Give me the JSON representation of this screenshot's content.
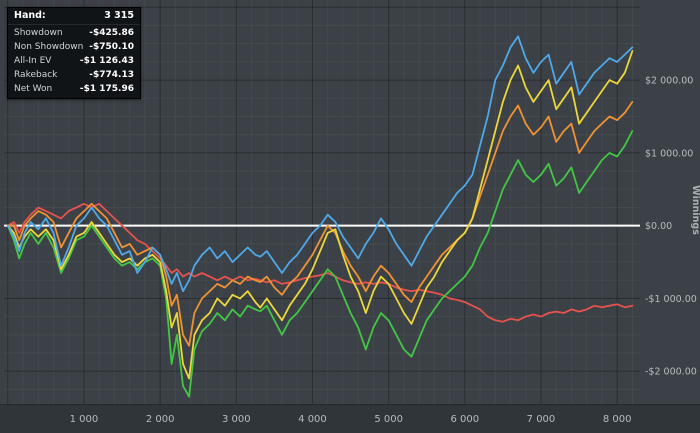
{
  "legend": {
    "rows": [
      {
        "label": "Hand:",
        "value": "3 315"
      },
      {
        "label": "Showdown",
        "value": "-$425.86"
      },
      {
        "label": "Non Showdown",
        "value": "-$750.10"
      },
      {
        "label": "All-In EV",
        "value": "-$1 126.43"
      },
      {
        "label": "Rakeback",
        "value": "-$774.13"
      },
      {
        "label": "Net Won",
        "value": "-$1 175.96"
      }
    ]
  },
  "chart_data": {
    "type": "line",
    "title": "",
    "xlabel": "",
    "ylabel": "Winnings",
    "xlim": [
      -50,
      8300
    ],
    "ylim": [
      -2450,
      3100
    ],
    "zero_line": 0,
    "colors": {
      "background": "#3b4146",
      "axis_strip": "#30353a",
      "zero_line": "#ffffff",
      "grid_minor": "rgba(255,255,255,0.045)",
      "grid_major": "rgba(0,0,0,0.28)",
      "tick_text": "#b6bbc0"
    },
    "grid": {
      "minor_x_step": 200,
      "minor_y_step": 250,
      "major_x_step": 1000,
      "major_y_step": 1000
    },
    "x_ticks": [
      {
        "v": 1000,
        "label": "1 000"
      },
      {
        "v": 2000,
        "label": "2 000"
      },
      {
        "v": 3000,
        "label": "3 000"
      },
      {
        "v": 4000,
        "label": "4 000"
      },
      {
        "v": 5000,
        "label": "5 000"
      },
      {
        "v": 6000,
        "label": "6 000"
      },
      {
        "v": 7000,
        "label": "7 000"
      },
      {
        "v": 8000,
        "label": "8 000"
      }
    ],
    "y_ticks": [
      {
        "v": 2000,
        "label": "$2 000.00"
      },
      {
        "v": 1000,
        "label": "$1 000.00"
      },
      {
        "v": 0,
        "label": "$0.00"
      },
      {
        "v": -1000,
        "label": "-$1 000.00"
      },
      {
        "v": -2000,
        "label": "-$2 000.00"
      }
    ],
    "x": [
      0,
      80,
      150,
      220,
      300,
      400,
      500,
      600,
      700,
      800,
      900,
      1000,
      1100,
      1200,
      1300,
      1400,
      1500,
      1600,
      1700,
      1800,
      1900,
      2000,
      2080,
      2150,
      2220,
      2300,
      2380,
      2450,
      2550,
      2650,
      2750,
      2850,
      2950,
      3050,
      3150,
      3250,
      3315,
      3400,
      3500,
      3600,
      3700,
      3800,
      3900,
      4000,
      4100,
      4200,
      4300,
      4400,
      4500,
      4600,
      4700,
      4800,
      4900,
      5000,
      5100,
      5200,
      5300,
      5400,
      5500,
      5600,
      5700,
      5800,
      5900,
      6000,
      6100,
      6200,
      6300,
      6400,
      6500,
      6600,
      6700,
      6800,
      6900,
      7000,
      7100,
      7200,
      7300,
      7400,
      7500,
      7600,
      7700,
      7800,
      7900,
      8000,
      8100,
      8200
    ],
    "series": [
      {
        "name": "Non Showdown",
        "color": "#e6534e",
        "values": [
          0,
          50,
          -100,
          50,
          150,
          250,
          200,
          150,
          100,
          200,
          250,
          300,
          250,
          300,
          200,
          100,
          0,
          -100,
          -200,
          -250,
          -350,
          -450,
          -550,
          -650,
          -600,
          -700,
          -650,
          -700,
          -650,
          -700,
          -750,
          -700,
          -750,
          -700,
          -750,
          -730,
          -750,
          -780,
          -750,
          -800,
          -780,
          -750,
          -720,
          -700,
          -680,
          -650,
          -700,
          -750,
          -780,
          -800,
          -780,
          -800,
          -780,
          -800,
          -850,
          -880,
          -900,
          -880,
          -900,
          -920,
          -950,
          -1000,
          -1020,
          -1050,
          -1100,
          -1150,
          -1250,
          -1300,
          -1320,
          -1280,
          -1300,
          -1250,
          -1220,
          -1250,
          -1200,
          -1180,
          -1200,
          -1150,
          -1180,
          -1150,
          -1100,
          -1120,
          -1100,
          -1080,
          -1120,
          -1100
        ]
      },
      {
        "name": "Net Won",
        "color": "#43c645",
        "values": [
          0,
          -200,
          -450,
          -250,
          -100,
          -250,
          -100,
          -300,
          -650,
          -450,
          -200,
          -150,
          0,
          -150,
          -300,
          -450,
          -550,
          -500,
          -600,
          -500,
          -450,
          -550,
          -1000,
          -1900,
          -1500,
          -2200,
          -2350,
          -1700,
          -1450,
          -1350,
          -1200,
          -1300,
          -1150,
          -1250,
          -1100,
          -1150,
          -1176,
          -1100,
          -1300,
          -1500,
          -1300,
          -1200,
          -1050,
          -900,
          -750,
          -600,
          -700,
          -950,
          -1200,
          -1400,
          -1700,
          -1400,
          -1200,
          -1300,
          -1500,
          -1700,
          -1800,
          -1550,
          -1300,
          -1150,
          -1000,
          -900,
          -800,
          -700,
          -550,
          -300,
          -100,
          200,
          500,
          700,
          900,
          700,
          600,
          700,
          850,
          550,
          650,
          800,
          450,
          600,
          750,
          900,
          1000,
          950,
          1100,
          1300
        ]
      },
      {
        "name": "Rakeback",
        "color": "#ef9234",
        "values": [
          0,
          0,
          -200,
          0,
          100,
          200,
          150,
          50,
          -300,
          -100,
          100,
          200,
          300,
          200,
          100,
          -100,
          -300,
          -250,
          -400,
          -350,
          -300,
          -400,
          -700,
          -1100,
          -950,
          -1500,
          -1650,
          -1200,
          -1000,
          -900,
          -800,
          -850,
          -750,
          -800,
          -700,
          -750,
          -774,
          -700,
          -850,
          -950,
          -800,
          -700,
          -550,
          -400,
          -200,
          0,
          -100,
          -350,
          -550,
          -700,
          -900,
          -700,
          -550,
          -650,
          -800,
          -950,
          -1050,
          -850,
          -700,
          -550,
          -400,
          -300,
          -200,
          -100,
          100,
          400,
          700,
          1000,
          1300,
          1500,
          1650,
          1400,
          1250,
          1350,
          1500,
          1150,
          1300,
          1400,
          1000,
          1150,
          1300,
          1400,
          1500,
          1450,
          1550,
          1700
        ]
      },
      {
        "name": "All-In EV",
        "color": "#ecd63b",
        "values": [
          0,
          -100,
          -300,
          -150,
          -50,
          -150,
          -50,
          -200,
          -600,
          -400,
          -150,
          -100,
          50,
          -100,
          -250,
          -400,
          -500,
          -450,
          -550,
          -450,
          -400,
          -500,
          -900,
          -1400,
          -1200,
          -1900,
          -2100,
          -1500,
          -1300,
          -1200,
          -1000,
          -1100,
          -950,
          -1000,
          -900,
          -1050,
          -1126,
          -1000,
          -1150,
          -1300,
          -1100,
          -950,
          -800,
          -600,
          -350,
          -100,
          -50,
          -400,
          -700,
          -900,
          -1200,
          -900,
          -700,
          -800,
          -1000,
          -1200,
          -1350,
          -1100,
          -850,
          -700,
          -500,
          -350,
          -200,
          -100,
          100,
          500,
          900,
          1300,
          1700,
          2000,
          2200,
          1900,
          1700,
          1850,
          2000,
          1600,
          1750,
          1900,
          1400,
          1550,
          1700,
          1850,
          2000,
          1950,
          2100,
          2400
        ]
      },
      {
        "name": "Showdown",
        "color": "#4fa8e8",
        "values": [
          0,
          -150,
          -350,
          -100,
          50,
          -50,
          100,
          -100,
          -550,
          -300,
          0,
          100,
          250,
          100,
          0,
          -200,
          -400,
          -350,
          -650,
          -500,
          -300,
          -400,
          -600,
          -800,
          -650,
          -900,
          -750,
          -550,
          -400,
          -300,
          -450,
          -350,
          -500,
          -400,
          -300,
          -400,
          -426,
          -350,
          -500,
          -650,
          -500,
          -400,
          -250,
          -100,
          0,
          150,
          50,
          -150,
          -300,
          -450,
          -250,
          -100,
          100,
          -50,
          -250,
          -400,
          -550,
          -350,
          -150,
          0,
          150,
          300,
          450,
          550,
          700,
          1100,
          1500,
          2000,
          2200,
          2450,
          2600,
          2300,
          2100,
          2250,
          2350,
          1950,
          2100,
          2250,
          1800,
          1950,
          2100,
          2200,
          2300,
          2250,
          2350,
          2450
        ]
      }
    ]
  }
}
